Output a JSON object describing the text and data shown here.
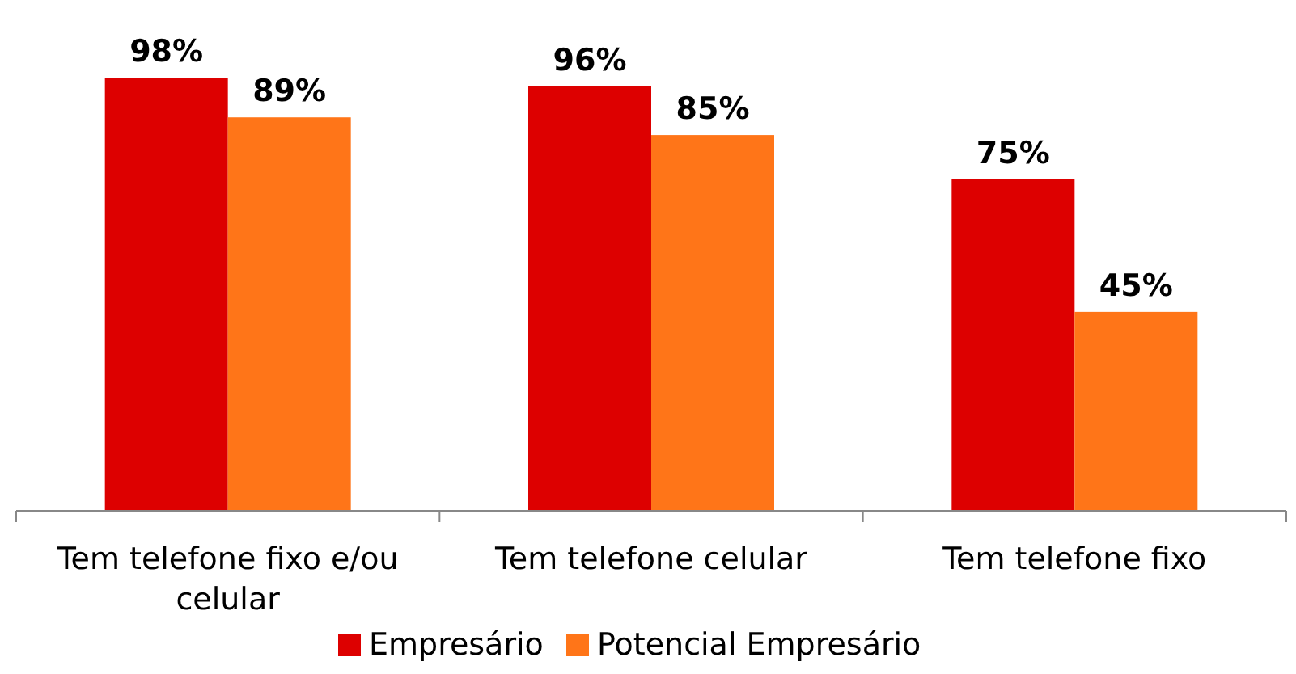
{
  "chart_data": {
    "type": "bar",
    "categories": [
      "Tem telefone fixo e/ou celular",
      "Tem telefone celular",
      "Tem telefone fixo"
    ],
    "series": [
      {
        "name": "Empresário",
        "color": "#dd0000",
        "values": [
          98,
          96,
          75
        ],
        "value_labels": [
          "98%",
          "96%",
          "75%"
        ]
      },
      {
        "name": "Potencial Empresário",
        "color": "#ff7518",
        "values": [
          89,
          85,
          45
        ],
        "value_labels": [
          "89%",
          "85%",
          "45%"
        ]
      }
    ],
    "legend": "bottom"
  }
}
